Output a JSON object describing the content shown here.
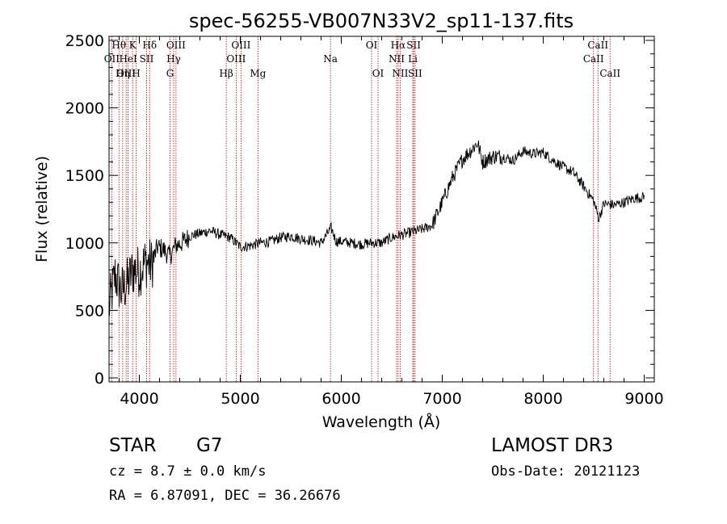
{
  "info": {
    "obj_class": "STAR",
    "subclass": "G7",
    "velocity": "cz = 8.7 ± 0.0 km/s",
    "coords": "RA =   6.87091, DEC =  36.26676",
    "survey": "LAMOST DR3",
    "obs_date": "Obs-Date: 20121123"
  },
  "chart_data": {
    "type": "line",
    "title": "spec-56255-VB007N33V2_sp11-137.fits",
    "xlabel": "Wavelength (Å)",
    "ylabel": "Flux (relative)",
    "xlim": [
      3700,
      9100
    ],
    "ylim": [
      -30,
      2530
    ],
    "xticks": [
      4000,
      5000,
      6000,
      7000,
      8000,
      9000
    ],
    "yticks": [
      0,
      500,
      1000,
      1500,
      2000,
      2500
    ],
    "line_color": "#b40000",
    "spectrum_color": "#000000",
    "spectral_lines": [
      {
        "label": "Hθ",
        "wave": 3798,
        "row": 0
      },
      {
        "label": "OII",
        "wave": 3727,
        "row": 1
      },
      {
        "label": "OIII",
        "wave": 3869,
        "row": 2
      },
      {
        "label": "K",
        "wave": 3934,
        "row": 0
      },
      {
        "label": "HeI",
        "wave": 3889,
        "row": 1
      },
      {
        "label": "Hη",
        "wave": 3835,
        "row": 2
      },
      {
        "label": "SII",
        "wave": 4072,
        "row": 1
      },
      {
        "label": "H",
        "wave": 3969,
        "row": 2
      },
      {
        "label": "Hδ",
        "wave": 4102,
        "row": 0
      },
      {
        "label": "OIII",
        "wave": 4363,
        "row": 0
      },
      {
        "label": "Hγ",
        "wave": 4340,
        "row": 1
      },
      {
        "label": "G",
        "wave": 4304,
        "row": 2
      },
      {
        "label": "Hβ",
        "wave": 4861,
        "row": 2
      },
      {
        "label": "OIII",
        "wave": 5007,
        "row": 0
      },
      {
        "label": "OIII",
        "wave": 4959,
        "row": 1
      },
      {
        "label": "Mg",
        "wave": 5175,
        "row": 2
      },
      {
        "label": "Na",
        "wave": 5893,
        "row": 1
      },
      {
        "label": "OI",
        "wave": 6300,
        "row": 0
      },
      {
        "label": "OI",
        "wave": 6364,
        "row": 2
      },
      {
        "label": "Hα",
        "wave": 6563,
        "row": 0
      },
      {
        "label": "NII",
        "wave": 6548,
        "row": 1
      },
      {
        "label": "NII",
        "wave": 6583,
        "row": 2
      },
      {
        "label": "SII",
        "wave": 6717,
        "row": 0
      },
      {
        "label": "Li",
        "wave": 6708,
        "row": 1
      },
      {
        "label": "SII",
        "wave": 6731,
        "row": 2
      },
      {
        "label": "CaII",
        "wave": 8542,
        "row": 0
      },
      {
        "label": "CaII",
        "wave": 8498,
        "row": 1
      },
      {
        "label": "CaII",
        "wave": 8662,
        "row": 2
      }
    ],
    "series": [
      {
        "name": "flux",
        "x": [
          3700,
          3760,
          3820,
          3880,
          3940,
          4000,
          4060,
          4120,
          4180,
          4240,
          4300,
          4360,
          4420,
          4500,
          4600,
          4700,
          4800,
          4900,
          5000,
          5100,
          5200,
          5300,
          5400,
          5500,
          5600,
          5700,
          5800,
          5900,
          5950,
          6000,
          6100,
          6200,
          6300,
          6400,
          6500,
          6600,
          6700,
          6800,
          6900,
          7000,
          7100,
          7200,
          7300,
          7350,
          7400,
          7500,
          7600,
          7700,
          7800,
          7900,
          8000,
          8100,
          8200,
          8300,
          8400,
          8500,
          8550,
          8600,
          8700,
          8800,
          8900,
          9000
        ],
        "y": [
          520,
          760,
          640,
          700,
          800,
          790,
          860,
          840,
          970,
          950,
          900,
          980,
          1000,
          1050,
          1070,
          1090,
          1060,
          1040,
          970,
          980,
          1000,
          1010,
          1040,
          1050,
          1030,
          1020,
          1000,
          1110,
          1010,
          1010,
          1000,
          990,
          1000,
          1000,
          1040,
          1060,
          1080,
          1100,
          1130,
          1300,
          1480,
          1620,
          1700,
          1740,
          1600,
          1640,
          1640,
          1610,
          1680,
          1660,
          1670,
          1610,
          1560,
          1520,
          1420,
          1310,
          1180,
          1290,
          1280,
          1300,
          1330,
          1340
        ]
      }
    ]
  }
}
